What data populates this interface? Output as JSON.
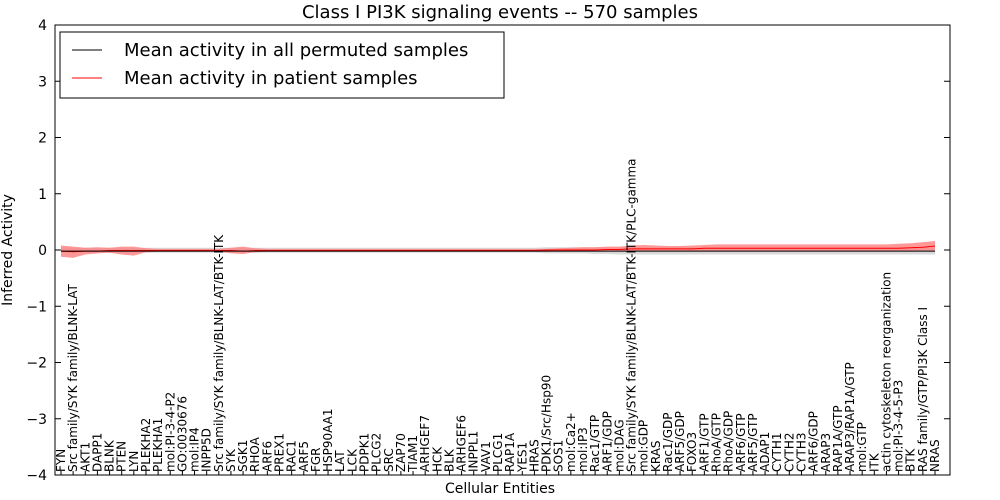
{
  "chart_data": {
    "type": "line",
    "title": "Class I PI3K signaling events -- 570 samples",
    "xlabel": "Cellular Entities",
    "ylabel": "Inferred Activity",
    "ylim": [
      -4,
      4
    ],
    "yticks": [
      -4,
      -3,
      -2,
      -1,
      0,
      1,
      2,
      3,
      4
    ],
    "ytick_labels": [
      "−4",
      "−3",
      "−2",
      "−1",
      "0",
      "1",
      "2",
      "3",
      "4"
    ],
    "grid": false,
    "legend_position": "top-left",
    "colors": {
      "permuted": "#000000",
      "patient": "#ff0000",
      "patient_band": "#ff7f7f",
      "permuted_band": "#bfbfbf"
    },
    "categories": [
      "FYN",
      "Src family/SYK family/BLNK-LAT",
      "AKT1",
      "DAPP1",
      "BLNK",
      "PTEN",
      "LYN",
      "PLEKHA2",
      "PLEKHA1",
      "mol:PI-3-4-P2",
      "GO:0030676",
      "mol:IP4",
      "INPP5D",
      "Src family/SYK family/BLNK-LAT/BTK-ITK",
      "SYK",
      "SGK1",
      "RHOA",
      "ARF6",
      "PREX1",
      "RAC1",
      "ARF5",
      "FGR",
      "HSP90AA1",
      "LAT",
      "LCK",
      "PDPK1",
      "PLCG2",
      "SRC",
      "ZAP70",
      "TIAM1",
      "ARHGEF7",
      "HCK",
      "BLK",
      "ARHGEF6",
      "INPPL1",
      "VAV1",
      "PLCG1",
      "RAP1A",
      "YES1",
      "HRAS",
      "PDK1/Src/Hsp90",
      "SOS1",
      "mol:Ca2+",
      "mol:IP3",
      "Rac1/GTP",
      "ARF1/GDP",
      "mol:DAG",
      "Src family/SYK family/BLNK-LAT/BTK-ITK/PLC-gamma",
      "mol:GDP",
      "KRAS",
      "Rac1/GDP",
      "ARF5/GDP",
      "FOXO3",
      "ARF1/GTP",
      "RhoA/GTP",
      "RhoA/GDP",
      "ARF6/GTP",
      "ARF5/GTP",
      "ADAP1",
      "CYTH1",
      "CYTH2",
      "CYTH3",
      "ARF6/GDP",
      "ARAP3",
      "RAP1A/GTP",
      "ARAP3/RAP1A/GTP",
      "mol:GTP",
      "ITK",
      "actin cytoskeleton reorganization",
      "mol:PI-3-4-5-P3",
      "BTK",
      "RAS family/GTP/PI3K Class I",
      "NRAS"
    ],
    "series": [
      {
        "name": "Mean activity in all permuted samples",
        "values": [
          -0.02,
          -0.02,
          -0.02,
          -0.02,
          -0.02,
          -0.02,
          -0.02,
          -0.02,
          -0.02,
          -0.02,
          -0.02,
          -0.02,
          -0.02,
          -0.02,
          -0.02,
          -0.02,
          -0.02,
          -0.02,
          -0.02,
          -0.02,
          -0.02,
          -0.02,
          -0.02,
          -0.02,
          -0.02,
          -0.02,
          -0.02,
          -0.02,
          -0.02,
          -0.02,
          -0.02,
          -0.02,
          -0.02,
          -0.02,
          -0.02,
          -0.02,
          -0.02,
          -0.02,
          -0.02,
          -0.02,
          -0.02,
          -0.02,
          -0.02,
          -0.02,
          -0.02,
          -0.02,
          -0.02,
          -0.02,
          -0.02,
          -0.02,
          -0.02,
          -0.02,
          -0.02,
          -0.02,
          -0.02,
          -0.02,
          -0.02,
          -0.02,
          -0.02,
          -0.02,
          -0.02,
          -0.02,
          -0.02,
          -0.02,
          -0.02,
          -0.02,
          -0.02,
          -0.02,
          -0.02,
          -0.02,
          -0.02,
          -0.02,
          -0.02
        ],
        "low": [
          -0.05,
          -0.05,
          -0.05,
          -0.05,
          -0.05,
          -0.05,
          -0.05,
          -0.05,
          -0.05,
          -0.05,
          -0.05,
          -0.05,
          -0.05,
          -0.05,
          -0.05,
          -0.05,
          -0.05,
          -0.05,
          -0.05,
          -0.05,
          -0.05,
          -0.05,
          -0.05,
          -0.05,
          -0.05,
          -0.05,
          -0.05,
          -0.05,
          -0.05,
          -0.05,
          -0.05,
          -0.05,
          -0.05,
          -0.05,
          -0.05,
          -0.05,
          -0.05,
          -0.05,
          -0.05,
          -0.05,
          -0.06,
          -0.06,
          -0.06,
          -0.06,
          -0.07,
          -0.07,
          -0.08,
          -0.08,
          -0.08,
          -0.08,
          -0.08,
          -0.08,
          -0.08,
          -0.08,
          -0.08,
          -0.08,
          -0.08,
          -0.08,
          -0.08,
          -0.08,
          -0.08,
          -0.08,
          -0.08,
          -0.08,
          -0.08,
          -0.08,
          -0.08,
          -0.08,
          -0.08,
          -0.08,
          -0.08,
          -0.08,
          -0.08
        ],
        "high": [
          0.04,
          0.04,
          0.04,
          0.04,
          0.04,
          0.04,
          0.04,
          0.04,
          0.04,
          0.04,
          0.04,
          0.04,
          0.04,
          0.04,
          0.04,
          0.04,
          0.04,
          0.04,
          0.04,
          0.04,
          0.04,
          0.04,
          0.04,
          0.04,
          0.04,
          0.04,
          0.04,
          0.04,
          0.04,
          0.04,
          0.04,
          0.04,
          0.04,
          0.04,
          0.04,
          0.04,
          0.04,
          0.04,
          0.04,
          0.04,
          0.05,
          0.05,
          0.05,
          0.05,
          0.05,
          0.05,
          0.05,
          0.05,
          0.05,
          0.05,
          0.05,
          0.05,
          0.05,
          0.05,
          0.05,
          0.05,
          0.05,
          0.05,
          0.05,
          0.05,
          0.05,
          0.05,
          0.05,
          0.05,
          0.05,
          0.05,
          0.05,
          0.05,
          0.05,
          0.05,
          0.05,
          0.05,
          0.05
        ]
      },
      {
        "name": "Mean activity in patient samples",
        "values": [
          -0.02,
          -0.03,
          -0.02,
          -0.02,
          -0.01,
          -0.01,
          -0.01,
          -0.01,
          -0.01,
          -0.01,
          -0.01,
          -0.01,
          -0.01,
          -0.01,
          -0.01,
          -0.02,
          -0.01,
          -0.01,
          -0.01,
          -0.01,
          -0.01,
          -0.01,
          -0.01,
          -0.01,
          -0.01,
          -0.01,
          -0.01,
          -0.01,
          -0.01,
          -0.01,
          -0.01,
          -0.01,
          -0.01,
          -0.01,
          -0.01,
          -0.01,
          -0.01,
          -0.01,
          -0.01,
          -0.01,
          0.0,
          0.0,
          0.0,
          0.0,
          0.0,
          0.01,
          0.01,
          0.02,
          0.02,
          0.02,
          0.02,
          0.02,
          0.02,
          0.03,
          0.03,
          0.03,
          0.03,
          0.03,
          0.03,
          0.03,
          0.03,
          0.03,
          0.03,
          0.03,
          0.03,
          0.03,
          0.03,
          0.03,
          0.03,
          0.03,
          0.04,
          0.05,
          0.07
        ],
        "low": [
          -0.12,
          -0.14,
          -0.08,
          -0.06,
          -0.05,
          -0.08,
          -0.1,
          -0.04,
          -0.03,
          -0.03,
          -0.03,
          -0.03,
          -0.03,
          -0.03,
          -0.06,
          -0.07,
          -0.04,
          -0.03,
          -0.03,
          -0.03,
          -0.03,
          -0.03,
          -0.03,
          -0.03,
          -0.03,
          -0.03,
          -0.03,
          -0.03,
          -0.03,
          -0.03,
          -0.03,
          -0.03,
          -0.03,
          -0.03,
          -0.03,
          -0.03,
          -0.03,
          -0.03,
          -0.03,
          -0.03,
          -0.03,
          -0.02,
          -0.02,
          -0.02,
          -0.02,
          -0.02,
          -0.02,
          -0.02,
          -0.02,
          -0.02,
          -0.02,
          -0.02,
          -0.02,
          -0.02,
          -0.02,
          -0.02,
          -0.02,
          -0.02,
          -0.02,
          -0.02,
          -0.02,
          -0.02,
          -0.02,
          -0.02,
          -0.02,
          -0.02,
          -0.02,
          -0.02,
          -0.02,
          -0.02,
          -0.02,
          -0.01,
          -0.01
        ],
        "high": [
          0.08,
          0.06,
          0.04,
          0.05,
          0.04,
          0.06,
          0.06,
          0.03,
          0.02,
          0.02,
          0.02,
          0.02,
          0.02,
          0.02,
          0.04,
          0.06,
          0.03,
          0.02,
          0.02,
          0.02,
          0.02,
          0.02,
          0.02,
          0.02,
          0.02,
          0.02,
          0.02,
          0.02,
          0.02,
          0.02,
          0.02,
          0.02,
          0.02,
          0.02,
          0.02,
          0.02,
          0.02,
          0.02,
          0.02,
          0.02,
          0.02,
          0.03,
          0.04,
          0.05,
          0.05,
          0.06,
          0.06,
          0.08,
          0.09,
          0.08,
          0.07,
          0.07,
          0.08,
          0.09,
          0.1,
          0.1,
          0.1,
          0.1,
          0.1,
          0.1,
          0.1,
          0.1,
          0.1,
          0.1,
          0.1,
          0.1,
          0.1,
          0.1,
          0.1,
          0.11,
          0.12,
          0.14,
          0.16
        ]
      }
    ]
  }
}
